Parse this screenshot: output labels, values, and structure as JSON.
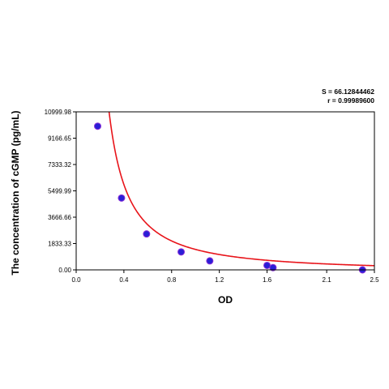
{
  "chart_data": {
    "type": "scatter",
    "xlabel": "OD",
    "ylabel": "The concentration of cGMP (pg/mL)",
    "xlim": [
      0,
      2.5
    ],
    "ylim": [
      0,
      10999.98
    ],
    "x_ticks": [
      0.0,
      0.4,
      0.8,
      1.2,
      1.6,
      2.1,
      2.5
    ],
    "x_tick_labels": [
      "0.0",
      "0.4",
      "0.8",
      "1.2",
      "1.6",
      "2.1",
      "2.5"
    ],
    "y_ticks": [
      0,
      1833.33,
      3666.66,
      5499.99,
      7333.32,
      9166.65,
      10999.98
    ],
    "y_tick_labels": [
      "0.00",
      "1833.33",
      "3666.66",
      "5499.99",
      "7333.32",
      "9166.65",
      "10999.98"
    ],
    "annotations": [
      "S = 66.12844462",
      "r = 0.99989600"
    ],
    "grid": false,
    "series": [
      {
        "type": "scatter",
        "color": "#2a1fd6",
        "points": [
          {
            "x": 0.18,
            "y": 10000
          },
          {
            "x": 0.38,
            "y": 5000
          },
          {
            "x": 0.59,
            "y": 2500
          },
          {
            "x": 0.88,
            "y": 1250
          },
          {
            "x": 1.12,
            "y": 625
          },
          {
            "x": 1.6,
            "y": 312
          },
          {
            "x": 1.65,
            "y": 156
          },
          {
            "x": 2.4,
            "y": 0
          }
        ]
      },
      {
        "type": "line",
        "color": "#e8141a",
        "fit": {
          "model": "a*(x-x0)^-n + c",
          "a": 1450,
          "x0": 0.06,
          "n": 1.33,
          "c": -150,
          "x_min": 0.156,
          "x_max": 2.5
        }
      }
    ]
  }
}
